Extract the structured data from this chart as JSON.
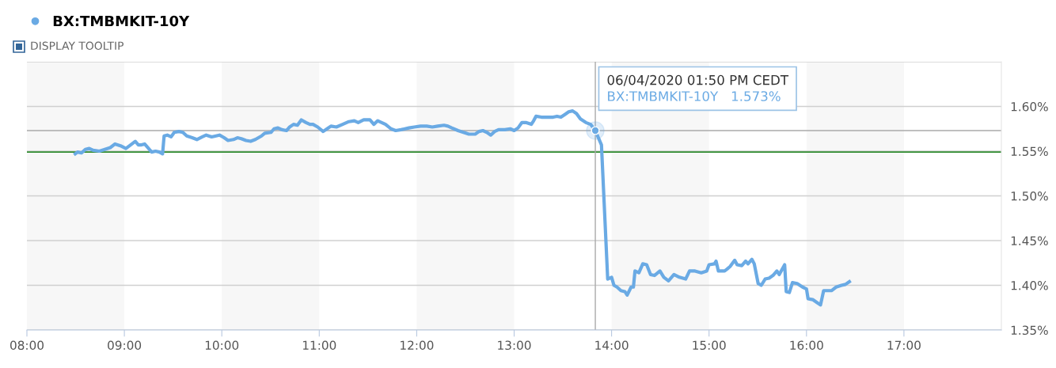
{
  "chart_data": {
    "type": "line",
    "series": [
      {
        "name": "BX:TMBMKIT-10Y",
        "color": "#6aaae4",
        "x": [
          8.496,
          8.52,
          8.56,
          8.6,
          8.64,
          8.68,
          8.744,
          8.8,
          8.856,
          8.904,
          8.96,
          9.016,
          9.064,
          9.112,
          9.144,
          9.176,
          9.208,
          9.24,
          9.28,
          9.32,
          9.36,
          9.392,
          9.408,
          9.44,
          9.48,
          9.512,
          9.56,
          9.6,
          9.64,
          9.696,
          9.744,
          9.8,
          9.84,
          9.896,
          9.976,
          10.024,
          10.064,
          10.12,
          10.16,
          10.2,
          10.248,
          10.296,
          10.344,
          10.376,
          10.408,
          10.44,
          10.504,
          10.536,
          10.576,
          10.616,
          10.664,
          10.696,
          10.736,
          10.776,
          10.816,
          10.864,
          10.904,
          10.936,
          10.984,
          11.04,
          11.08,
          11.12,
          11.176,
          11.24,
          11.304,
          11.36,
          11.4,
          11.456,
          11.52,
          11.56,
          11.6,
          11.64,
          11.68,
          11.736,
          11.784,
          11.84,
          11.92,
          11.976,
          12.04,
          12.104,
          12.16,
          12.216,
          12.28,
          12.32,
          12.36,
          12.424,
          12.48,
          12.536,
          12.6,
          12.64,
          12.68,
          12.72,
          12.76,
          12.8,
          12.84,
          12.904,
          12.96,
          13.0,
          13.04,
          13.08,
          13.12,
          13.176,
          13.2,
          13.224,
          13.28,
          13.36,
          13.4,
          13.44,
          13.48,
          13.52,
          13.56,
          13.6,
          13.64,
          13.68,
          13.736,
          13.784,
          13.833,
          13.896,
          13.96,
          14.0,
          14.024,
          14.056,
          14.096,
          14.136,
          14.16,
          14.2,
          14.224,
          14.24,
          14.28,
          14.32,
          14.36,
          14.4,
          14.44,
          14.496,
          14.536,
          14.584,
          14.64,
          14.696,
          14.76,
          14.8,
          14.856,
          14.92,
          14.976,
          15.0,
          15.056,
          15.072,
          15.096,
          15.16,
          15.184,
          15.216,
          15.264,
          15.288,
          15.336,
          15.376,
          15.4,
          15.44,
          15.464,
          15.504,
          15.536,
          15.576,
          15.616,
          15.656,
          15.696,
          15.72,
          15.776,
          15.792,
          15.824,
          15.856,
          15.904,
          15.96,
          16.0,
          16.016,
          16.064,
          16.104,
          16.144,
          16.176,
          16.2,
          16.256,
          16.304,
          16.36,
          16.4,
          16.44
        ],
        "values": [
          1.547,
          1.549,
          1.548,
          1.552,
          1.553,
          1.551,
          1.55,
          1.552,
          1.554,
          1.558,
          1.556,
          1.553,
          1.557,
          1.561,
          1.557,
          1.557,
          1.558,
          1.554,
          1.549,
          1.55,
          1.549,
          1.547,
          1.567,
          1.568,
          1.566,
          1.571,
          1.572,
          1.571,
          1.567,
          1.565,
          1.563,
          1.566,
          1.568,
          1.566,
          1.568,
          1.565,
          1.562,
          1.563,
          1.565,
          1.564,
          1.562,
          1.561,
          1.563,
          1.565,
          1.567,
          1.57,
          1.571,
          1.575,
          1.576,
          1.574,
          1.573,
          1.577,
          1.58,
          1.579,
          1.585,
          1.582,
          1.58,
          1.58,
          1.577,
          1.572,
          1.575,
          1.578,
          1.577,
          1.58,
          1.583,
          1.584,
          1.582,
          1.585,
          1.585,
          1.58,
          1.584,
          1.582,
          1.58,
          1.575,
          1.573,
          1.574,
          1.576,
          1.577,
          1.578,
          1.578,
          1.577,
          1.578,
          1.579,
          1.578,
          1.576,
          1.573,
          1.571,
          1.569,
          1.569,
          1.572,
          1.573,
          1.571,
          1.568,
          1.572,
          1.574,
          1.574,
          1.575,
          1.573,
          1.576,
          1.582,
          1.582,
          1.58,
          1.584,
          1.589,
          1.588,
          1.588,
          1.588,
          1.589,
          1.588,
          1.591,
          1.594,
          1.595,
          1.592,
          1.586,
          1.582,
          1.58,
          1.573,
          1.557,
          1.407,
          1.409,
          1.4,
          1.398,
          1.394,
          1.393,
          1.389,
          1.398,
          1.398,
          1.416,
          1.414,
          1.424,
          1.423,
          1.412,
          1.411,
          1.416,
          1.409,
          1.405,
          1.412,
          1.409,
          1.407,
          1.416,
          1.416,
          1.414,
          1.416,
          1.423,
          1.424,
          1.427,
          1.416,
          1.416,
          1.418,
          1.421,
          1.428,
          1.423,
          1.422,
          1.427,
          1.424,
          1.429,
          1.424,
          1.402,
          1.4,
          1.407,
          1.408,
          1.411,
          1.416,
          1.412,
          1.423,
          1.393,
          1.392,
          1.403,
          1.402,
          1.398,
          1.396,
          1.385,
          1.384,
          1.381,
          1.378,
          1.394,
          1.394,
          1.394,
          1.398,
          1.4,
          1.401,
          1.404
        ]
      }
    ],
    "xlim": [
      8,
      18
    ],
    "xticks": [
      {
        "value": 8,
        "label": "08:00"
      },
      {
        "value": 9,
        "label": "09:00"
      },
      {
        "value": 10,
        "label": "10:00"
      },
      {
        "value": 11,
        "label": "11:00"
      },
      {
        "value": 12,
        "label": "12:00"
      },
      {
        "value": 13,
        "label": "13:00"
      },
      {
        "value": 14,
        "label": "14:00"
      },
      {
        "value": 15,
        "label": "15:00"
      },
      {
        "value": 16,
        "label": "16:00"
      },
      {
        "value": 17,
        "label": "17:00"
      }
    ],
    "ylim": [
      1.35,
      1.65
    ],
    "yticks": [
      {
        "value": 1.35,
        "label": "1.35%"
      },
      {
        "value": 1.4,
        "label": "1.40%"
      },
      {
        "value": 1.45,
        "label": "1.45%"
      },
      {
        "value": 1.5,
        "label": "1.50%"
      },
      {
        "value": 1.55,
        "label": "1.55%"
      },
      {
        "value": 1.6,
        "label": "1.60%"
      },
      {
        "value": 1.65,
        "label": null
      }
    ],
    "grid": "y",
    "legend": "top left",
    "marker": "none",
    "line_style": "solid",
    "ref_lines": [
      {
        "axis": "y",
        "value": 1.549,
        "color": "#2e8b2e"
      },
      {
        "axis": "x",
        "value": 13.833,
        "color": "#aaaaaa"
      },
      {
        "axis": "y",
        "value": 1.573,
        "color": "#aaaaaa"
      }
    ],
    "bands": [
      {
        "axis": "x",
        "from": 8,
        "to": 9,
        "color": "#f7f7f7"
      },
      {
        "axis": "x",
        "from": 10,
        "to": 11,
        "color": "#f7f7f7"
      },
      {
        "axis": "x",
        "from": 12,
        "to": 13,
        "color": "#f7f7f7"
      },
      {
        "axis": "x",
        "from": 14,
        "to": 15,
        "color": "#f7f7f7"
      },
      {
        "axis": "x",
        "from": 16,
        "to": 17,
        "color": "#f7f7f7"
      }
    ],
    "annotations": [
      "DISPLAY TOOLTIP",
      "06/04/2020 01:50 PM CEDT\nBX:TMBMKIT-10Y   1.573%"
    ]
  }
}
